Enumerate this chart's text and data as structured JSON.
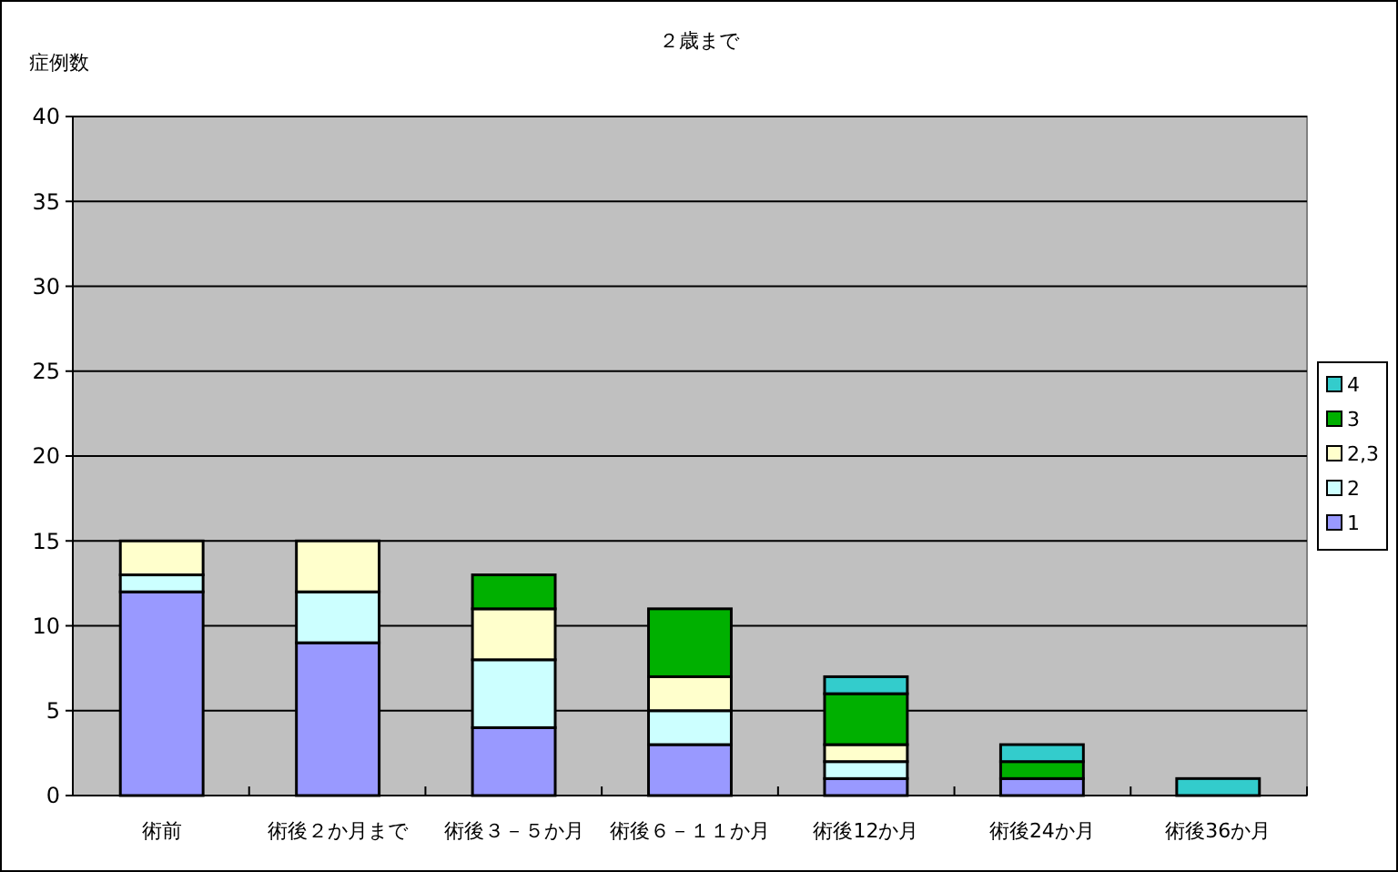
{
  "chart_data": {
    "type": "bar",
    "title": "２歳まで",
    "ylabel": "症例数",
    "stacked": true,
    "categories": [
      "術前",
      "術後２か月まで",
      "術後３－５か月",
      "術後６－１１か月",
      "術後12か月",
      "術後24か月",
      "術後36か月"
    ],
    "series": [
      {
        "name": "1",
        "color": "#9999ff",
        "values": [
          12,
          9,
          4,
          3,
          1,
          1,
          0
        ]
      },
      {
        "name": "2",
        "color": "#ccffff",
        "values": [
          1,
          3,
          4,
          2,
          1,
          0,
          0
        ]
      },
      {
        "name": "2,3",
        "color": "#ffffcc",
        "values": [
          2,
          3,
          3,
          2,
          1,
          0,
          0
        ]
      },
      {
        "name": "3",
        "color": "#00b000",
        "values": [
          0,
          0,
          2,
          4,
          3,
          1,
          0
        ]
      },
      {
        "name": "4",
        "color": "#33cccc",
        "values": [
          0,
          0,
          0,
          0,
          1,
          1,
          1
        ]
      }
    ],
    "ylim": [
      0,
      40
    ],
    "yticks": [
      0,
      5,
      10,
      15,
      20,
      25,
      30,
      35,
      40
    ],
    "grid": "y",
    "legend": "right"
  }
}
